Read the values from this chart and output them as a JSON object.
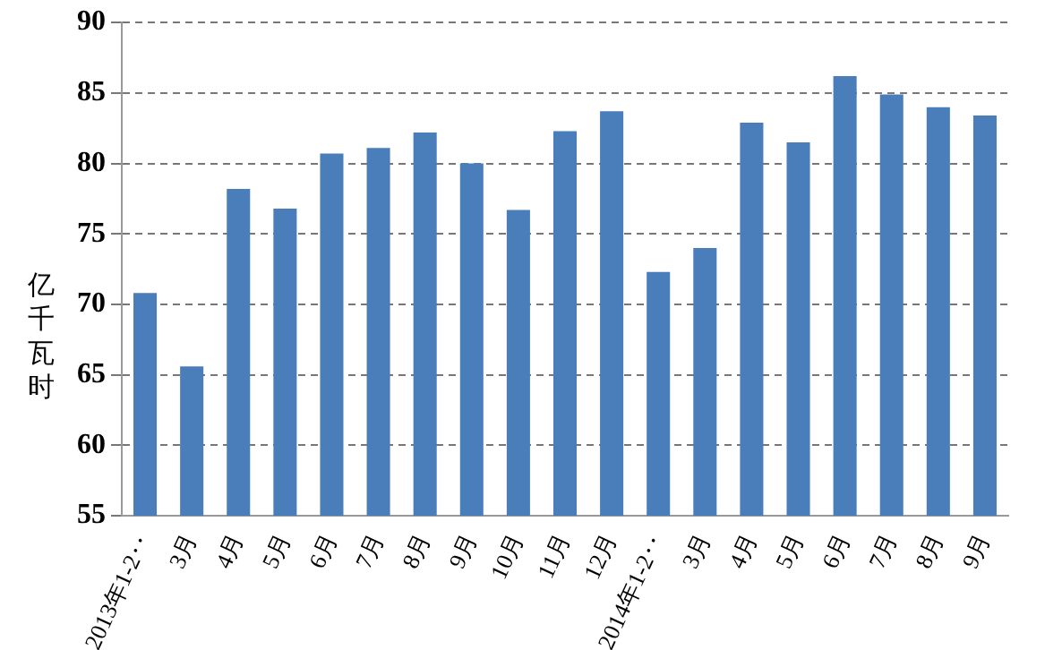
{
  "chart_data": {
    "type": "bar",
    "ylabel": "亿千瓦时",
    "categories": [
      "2013年1-2‥",
      "3月",
      "4月",
      "5月",
      "6月",
      "7月",
      "8月",
      "9月",
      "10月",
      "11月",
      "12月",
      "2014年1-2‥",
      "3月",
      "4月",
      "5月",
      "6月",
      "7月",
      "8月",
      "9月"
    ],
    "series": [
      {
        "color": "#4a7ebb",
        "values": [
          70.8,
          65.6,
          78.2,
          76.8,
          80.7,
          81.1,
          82.2,
          80.0,
          76.7,
          82.3,
          83.7,
          72.3,
          74.0,
          82.9,
          81.5,
          86.2,
          84.9,
          84.0,
          83.4
        ]
      }
    ],
    "ylim": [
      55,
      90
    ],
    "yticks": [
      55,
      60,
      65,
      70,
      75,
      80,
      85,
      90
    ],
    "grid": "y",
    "legend": false
  }
}
